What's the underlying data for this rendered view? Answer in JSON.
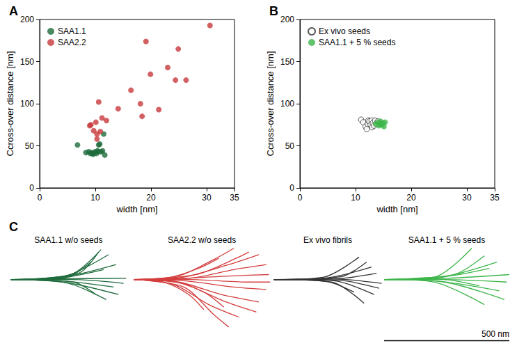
{
  "chart_data": [
    {
      "type": "scatter",
      "title": "A",
      "x_label": "width [nm]",
      "y_label": "Ccross-over distance [nm]",
      "xlim": [
        0,
        35
      ],
      "xticks": [
        0,
        10,
        20,
        30
      ],
      "ylim": [
        0,
        200
      ],
      "yticks": [
        0,
        50,
        100,
        150,
        200
      ],
      "grid": false,
      "legend": "upper left",
      "series": [
        {
          "name": "SAA1.1",
          "color": "#1e6b3c",
          "marker": "circle",
          "x": [
            6.8,
            8.3,
            8.8,
            9.1,
            9.3,
            9.5,
            9.6,
            9.8,
            10.0,
            10.2,
            10.4,
            10.5,
            10.6,
            10.8,
            11.0,
            11.3,
            11.5,
            11.7
          ],
          "y": [
            51,
            42,
            43,
            41,
            42,
            41,
            40,
            42,
            43,
            41,
            44,
            43,
            51,
            52,
            43,
            44,
            64,
            39
          ]
        },
        {
          "name": "SAA2.2",
          "color": "#c8383b",
          "marker": "circle",
          "x": [
            9.0,
            9.2,
            9.7,
            10.1,
            10.3,
            10.3,
            10.6,
            10.9,
            11.2,
            12.0,
            14.1,
            16.4,
            18.1,
            18.4,
            19.1,
            19.9,
            21.4,
            23.0,
            24.4,
            24.9,
            26.3,
            30.6
          ],
          "y": [
            74,
            75,
            68,
            78,
            58,
            64,
            102,
            67,
            83,
            80,
            94,
            116,
            100,
            85,
            174,
            135,
            93,
            143,
            128,
            165,
            128,
            193
          ]
        }
      ]
    },
    {
      "type": "scatter",
      "title": "B",
      "x_label": "width [nm]",
      "y_label": "Ccross-over distance [nm]",
      "xlim": [
        0,
        35
      ],
      "xticks": [
        0,
        10,
        20,
        30
      ],
      "ylim": [
        0,
        200
      ],
      "yticks": [
        0,
        50,
        100,
        150,
        200
      ],
      "grid": false,
      "legend": "upper left",
      "series": [
        {
          "name": "Ex vivo seeds",
          "color": "#333333",
          "marker": "open circle",
          "x": [
            11.0,
            11.4,
            11.8,
            12.0,
            12.2,
            12.3,
            12.5,
            12.7,
            12.9,
            13.0,
            13.1,
            13.3,
            13.5,
            13.7,
            14.0
          ],
          "y": [
            81,
            78,
            73,
            70,
            76,
            80,
            79,
            75,
            80,
            72,
            77,
            74,
            80,
            76,
            79
          ]
        },
        {
          "name": "SAA1.1 + 5 % seeds",
          "color": "#3cb54a",
          "marker": "circle",
          "x": [
            13.6,
            14.0,
            14.2,
            14.4,
            14.5,
            14.7,
            14.9,
            15.1,
            15.3
          ],
          "y": [
            76,
            78,
            74,
            76,
            79,
            75,
            77,
            73,
            78
          ]
        }
      ]
    },
    {
      "type": "line",
      "title": "C",
      "tick_labels": false,
      "xlim": [
        0,
        2000
      ],
      "ylim": [
        -260,
        130
      ],
      "scale_bar": {
        "value": 500,
        "label": "500 nm"
      },
      "groups": [
        {
          "name": "SAA1.1 w/o seeds",
          "color": "#1e6b3c",
          "traces": [
            [
              [
                10,
                0
              ],
              [
                200,
                3
              ],
              [
                470,
                5
              ]
            ],
            [
              [
                10,
                0
              ],
              [
                220,
                10
              ],
              [
                430,
                60
              ]
            ],
            [
              [
                10,
                0
              ],
              [
                230,
                15
              ],
              [
                400,
                100
              ]
            ],
            [
              [
                10,
                0
              ],
              [
                250,
                20
              ],
              [
                370,
                120
              ]
            ],
            [
              [
                10,
                0
              ],
              [
                200,
                5
              ],
              [
                380,
                40
              ]
            ],
            [
              [
                10,
                0
              ],
              [
                210,
                -5
              ],
              [
                420,
                -30
              ]
            ],
            [
              [
                10,
                0
              ],
              [
                220,
                -10
              ],
              [
                440,
                -60
              ]
            ],
            [
              [
                10,
                0
              ],
              [
                240,
                -15
              ],
              [
                390,
                -80
              ]
            ],
            [
              [
                10,
                0
              ],
              [
                260,
                -10
              ],
              [
                350,
                -60
              ]
            ],
            [
              [
                10,
                0
              ],
              [
                230,
                8
              ],
              [
                330,
                70
              ]
            ],
            [
              [
                10,
                0
              ],
              [
                250,
                0
              ],
              [
                460,
                -15
              ]
            ],
            [
              [
                10,
                0
              ],
              [
                280,
                25
              ],
              [
                360,
                110
              ]
            ]
          ]
        },
        {
          "name": "SAA2.2 w/o seeds",
          "color": "#d43d3d",
          "traces": [
            [
              [
                500,
                0
              ],
              [
                700,
                5
              ],
              [
                900,
                15
              ],
              [
                1040,
                20
              ]
            ],
            [
              [
                500,
                0
              ],
              [
                700,
                10
              ],
              [
                880,
                60
              ],
              [
                1000,
                100
              ]
            ],
            [
              [
                500,
                0
              ],
              [
                680,
                15
              ],
              [
                820,
                80
              ],
              [
                900,
                125
              ]
            ],
            [
              [
                500,
                0
              ],
              [
                720,
                5
              ],
              [
                900,
                40
              ],
              [
                1030,
                60
              ]
            ],
            [
              [
                500,
                0
              ],
              [
                700,
                -5
              ],
              [
                900,
                -30
              ],
              [
                1030,
                -40
              ]
            ],
            [
              [
                500,
                0
              ],
              [
                680,
                -10
              ],
              [
                850,
                -60
              ],
              [
                1000,
                -90
              ]
            ],
            [
              [
                500,
                0
              ],
              [
                660,
                -20
              ],
              [
                800,
                -100
              ],
              [
                920,
                -150
              ]
            ],
            [
              [
                500,
                0
              ],
              [
                700,
                -30
              ],
              [
                820,
                -140
              ],
              [
                880,
                -190
              ]
            ],
            [
              [
                500,
                0
              ],
              [
                650,
                -5
              ],
              [
                780,
                -50
              ],
              [
                860,
                -110
              ]
            ],
            [
              [
                500,
                0
              ],
              [
                640,
                8
              ],
              [
                760,
                45
              ],
              [
                840,
                85
              ]
            ],
            [
              [
                500,
                0
              ],
              [
                720,
                0
              ],
              [
                950,
                -10
              ],
              [
                1045,
                -10
              ]
            ],
            [
              [
                500,
                0
              ],
              [
                690,
                -15
              ],
              [
                870,
                -90
              ],
              [
                990,
                -130
              ]
            ],
            [
              [
                500,
                0
              ],
              [
                750,
                20
              ],
              [
                920,
                90
              ],
              [
                960,
                110
              ]
            ],
            [
              [
                500,
                0
              ],
              [
                620,
                -10
              ],
              [
                720,
                -60
              ],
              [
                780,
                -120
              ]
            ]
          ]
        },
        {
          "name": "Ex vivo fibrils",
          "color": "#333333",
          "traces": [
            [
              [
                1060,
                0
              ],
              [
                1300,
                2
              ],
              [
                1490,
                -15
              ]
            ],
            [
              [
                1060,
                0
              ],
              [
                1280,
                8
              ],
              [
                1450,
                50
              ]
            ],
            [
              [
                1060,
                0
              ],
              [
                1260,
                10
              ],
              [
                1400,
                90
              ]
            ],
            [
              [
                1060,
                0
              ],
              [
                1300,
                -5
              ],
              [
                1460,
                -60
              ]
            ],
            [
              [
                1060,
                0
              ],
              [
                1290,
                -10
              ],
              [
                1420,
                -95
              ]
            ],
            [
              [
                1060,
                0
              ],
              [
                1320,
                4
              ],
              [
                1470,
                25
              ]
            ],
            [
              [
                1060,
                0
              ],
              [
                1270,
                -8
              ],
              [
                1380,
                -50
              ]
            ],
            [
              [
                1060,
                0
              ],
              [
                1330,
                12
              ],
              [
                1430,
                70
              ]
            ],
            [
              [
                1060,
                0
              ],
              [
                1310,
                -2
              ],
              [
                1480,
                -35
              ]
            ]
          ]
        },
        {
          "name": "SAA1.1 + 5 % seeds",
          "color": "#3cb54a",
          "traces": [
            [
              [
                1500,
                0
              ],
              [
                1700,
                10
              ],
              [
                1850,
                125
              ]
            ],
            [
              [
                1500,
                0
              ],
              [
                1720,
                8
              ],
              [
                1950,
                70
              ]
            ],
            [
              [
                1500,
                0
              ],
              [
                1750,
                5
              ],
              [
                2000,
                20
              ]
            ],
            [
              [
                1500,
                0
              ],
              [
                1730,
                0
              ],
              [
                1990,
                -10
              ]
            ],
            [
              [
                1500,
                0
              ],
              [
                1700,
                -5
              ],
              [
                1960,
                -45
              ]
            ],
            [
              [
                1500,
                0
              ],
              [
                1740,
                -10
              ],
              [
                1980,
                -80
              ]
            ],
            [
              [
                1500,
                0
              ],
              [
                1690,
                -8
              ],
              [
                1900,
                -100
              ]
            ],
            [
              [
                1500,
                0
              ],
              [
                1760,
                15
              ],
              [
                1920,
                45
              ]
            ],
            [
              [
                1500,
                0
              ],
              [
                1710,
                3
              ],
              [
                1880,
                -25
              ]
            ],
            [
              [
                1500,
                0
              ],
              [
                1780,
                20
              ],
              [
                1900,
                95
              ]
            ]
          ]
        }
      ]
    }
  ]
}
